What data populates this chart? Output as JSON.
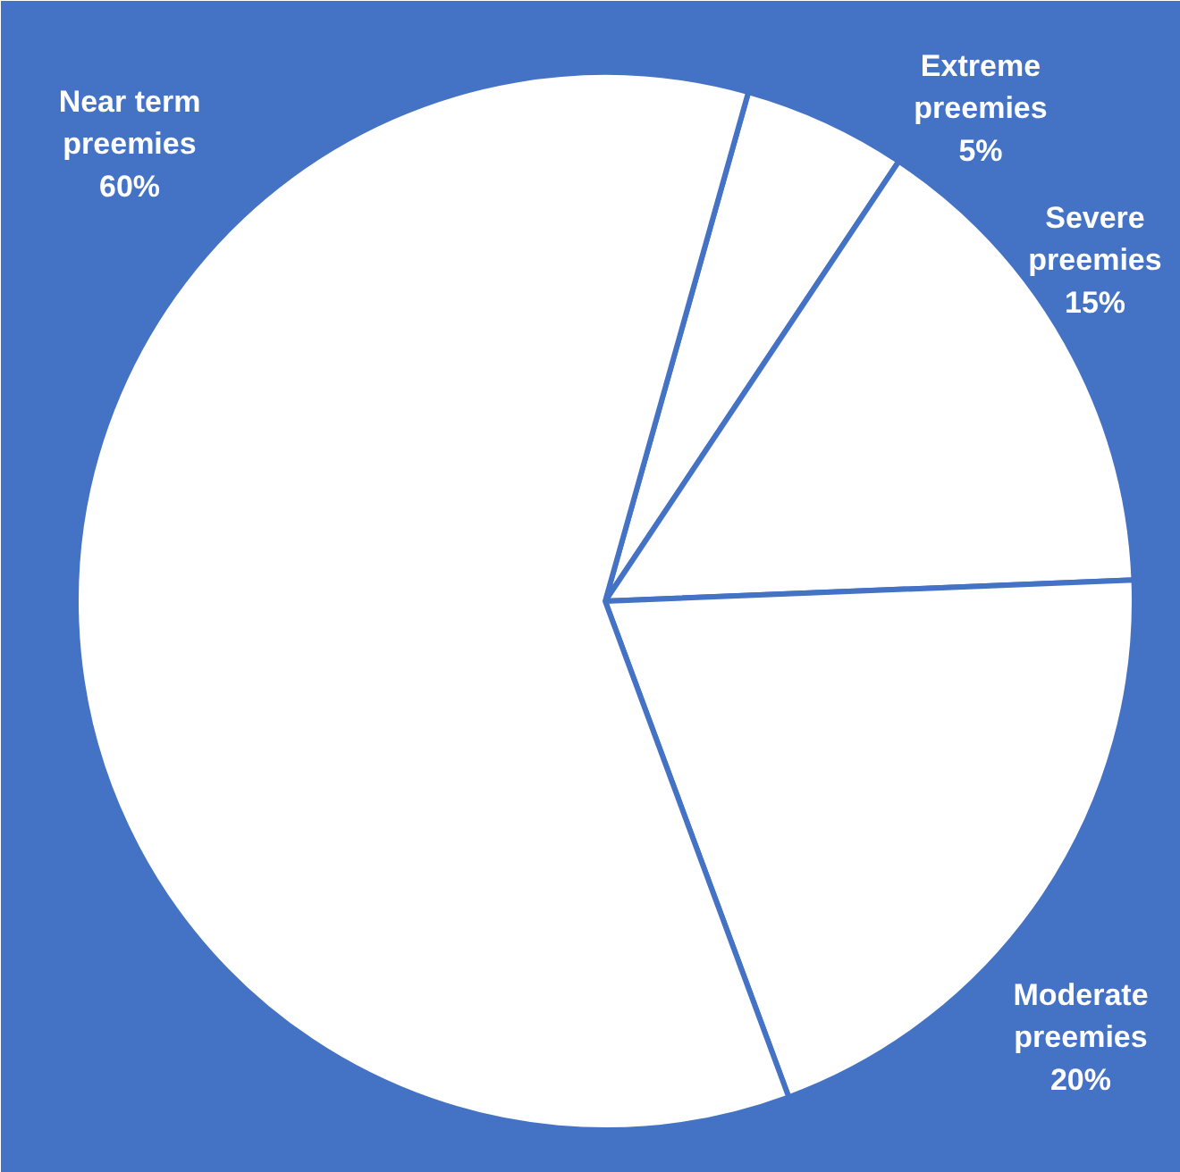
{
  "chart_data": {
    "type": "pie",
    "categories": [
      "Extreme preemies",
      "Severe preemies",
      "Moderate preemies",
      "Near term preemies"
    ],
    "values": [
      5,
      15,
      20,
      60
    ],
    "colors": [
      "#ffffff",
      "#ffffff",
      "#ffffff",
      "#ffffff"
    ],
    "value_labels": [
      "5%",
      "15%",
      "20%",
      "60%"
    ],
    "legend": false
  }
}
